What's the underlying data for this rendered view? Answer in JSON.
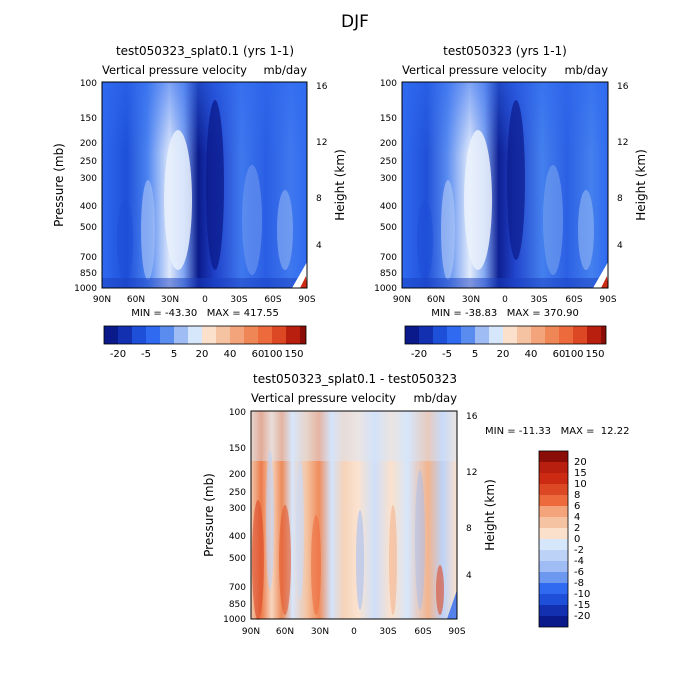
{
  "figure_title": "DJF",
  "colors": {
    "dark_blue": "#0b1a8a",
    "mid_blue": "#1e4fd8",
    "blue": "#2f6af0",
    "light_blue": "#9fbcf5",
    "pale_blue": "#d6e6fb",
    "pale_orange": "#fbe1cc",
    "light_orange": "#f3b48e",
    "orange": "#ec6a3c",
    "red": "#cc2a12",
    "dark_red": "#8a0d07"
  },
  "chart_data": [
    {
      "id": "panel1",
      "type": "heatmap",
      "title": "test050323_splat0.1 (yrs 1-1)",
      "subtitle_left": "Vertical pressure velocity",
      "subtitle_right": "mb/day",
      "ylabel": "Pressure (mb)",
      "ylabel_right": "Height (km)",
      "xticks": [
        "90N",
        "60N",
        "30N",
        "0",
        "30S",
        "60S",
        "90S"
      ],
      "yticks": [
        "100",
        "150",
        "200",
        "250",
        "300",
        "400",
        "500",
        "700",
        "850",
        "1000"
      ],
      "yticks_right": [
        "16",
        "12",
        "8",
        "4"
      ],
      "stats": "MIN = -43.30   MAX = 417.55",
      "colorbar_labels": [
        "-20",
        "-5",
        "5",
        "20",
        "40",
        "60",
        "100",
        "150"
      ]
    },
    {
      "id": "panel2",
      "type": "heatmap",
      "title": "test050323 (yrs 1-1)",
      "subtitle_left": "Vertical pressure velocity",
      "subtitle_right": "mb/day",
      "ylabel": "Pressure (mb)",
      "ylabel_right": "Height (km)",
      "xticks": [
        "90N",
        "60N",
        "30N",
        "0",
        "30S",
        "60S",
        "90S"
      ],
      "yticks": [
        "100",
        "150",
        "200",
        "250",
        "300",
        "400",
        "500",
        "700",
        "850",
        "1000"
      ],
      "yticks_right": [
        "16",
        "12",
        "8",
        "4"
      ],
      "stats": "MIN = -38.83   MAX = 370.90",
      "colorbar_labels": [
        "-20",
        "-5",
        "5",
        "20",
        "40",
        "60",
        "100",
        "150"
      ]
    },
    {
      "id": "panel3",
      "type": "heatmap",
      "title": "test050323_splat0.1 - test050323",
      "subtitle_left": "Vertical pressure velocity",
      "subtitle_right": "mb/day",
      "ylabel": "Pressure (mb)",
      "ylabel_right": "Height (km)",
      "xticks": [
        "90N",
        "60N",
        "30N",
        "0",
        "30S",
        "60S",
        "90S"
      ],
      "yticks": [
        "100",
        "150",
        "200",
        "250",
        "300",
        "400",
        "500",
        "700",
        "850",
        "1000"
      ],
      "yticks_right": [
        "16",
        "12",
        "8",
        "4"
      ],
      "stats": "MIN = -11.33   MAX =  12.22",
      "colorbar_labels": [
        "20",
        "15",
        "10",
        "8",
        "6",
        "4",
        "2",
        "0",
        "-2",
        "-4",
        "-6",
        "-8",
        "-10",
        "-15",
        "-20"
      ]
    }
  ]
}
